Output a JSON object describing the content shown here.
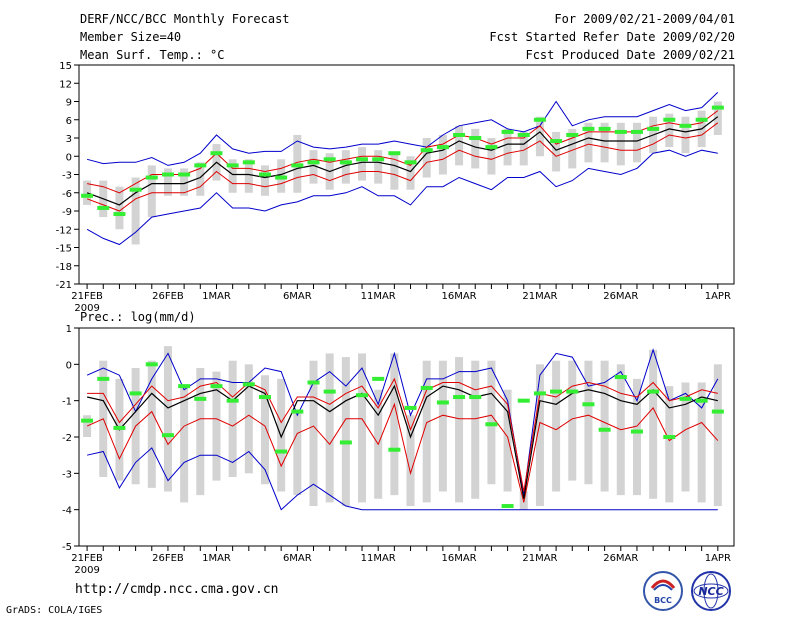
{
  "header": {
    "title": "DERF/NCC/BCC Monthly Forecast",
    "member_size": "Member Size=40",
    "variable": "Mean Surf. Temp.: °C",
    "period": "For 2009/02/21-2009/04/01",
    "fcst_started": "Fcst Started Refer Date 2009/02/20",
    "fcst_produced": "Fcst Produced Date 2009/02/21"
  },
  "footer": {
    "url": "http://cmdp.ncc.cma.gov.cn",
    "grads": "GrADS: COLA/IGES",
    "logo_bcc": "BCC",
    "logo_ncc": "NCC"
  },
  "colors": {
    "box": "#d3d3d3",
    "median": "#000000",
    "quartile": "#e00000",
    "extreme": "#0000cc",
    "obs": "#33ee33"
  },
  "chart_data": [
    {
      "type": "line",
      "title": "Mean Surf. Temp.: °C",
      "ylim": [
        -21,
        15
      ],
      "yticks": [
        15,
        12,
        9,
        6,
        3,
        0,
        -3,
        -6,
        -9,
        -12,
        -15,
        -18,
        -21
      ],
      "xlabels": [
        "21FEB",
        "26FEB",
        "1MAR",
        "6MAR",
        "11MAR",
        "16MAR",
        "21MAR",
        "26MAR",
        "1APR"
      ],
      "xlabel_days": [
        1,
        6,
        9,
        14,
        19,
        24,
        29,
        34,
        40
      ],
      "year_label": "2009",
      "days": 40,
      "series": [
        {
          "name": "max",
          "values": [
            -0.5,
            -1.2,
            -1.0,
            -1.0,
            -0.2,
            -1.5,
            -1.0,
            0.5,
            3.5,
            1.2,
            0.5,
            0.8,
            0.8,
            2.5,
            1.5,
            1.2,
            1.5,
            2.0,
            2.0,
            2.5,
            2.0,
            1.5,
            3.5,
            5.0,
            5.5,
            6.0,
            4.5,
            4.0,
            5.0,
            9.0,
            5.0,
            6.0,
            6.5,
            6.5,
            6.5,
            7.5,
            8.5,
            7.5,
            8.0,
            10.5
          ]
        },
        {
          "name": "q3",
          "values": [
            -4.5,
            -5.0,
            -6.0,
            -4.5,
            -3.0,
            -3.0,
            -3.0,
            -2.0,
            0.5,
            -2.0,
            -2.0,
            -2.5,
            -2.0,
            -1.0,
            -0.5,
            -1.0,
            -0.5,
            0.0,
            0.0,
            -0.5,
            -1.5,
            1.5,
            2.0,
            3.5,
            3.0,
            2.0,
            3.0,
            3.0,
            5.0,
            2.0,
            3.0,
            4.0,
            4.0,
            4.0,
            4.0,
            5.0,
            5.5,
            5.0,
            5.5,
            7.5
          ]
        },
        {
          "name": "median",
          "values": [
            -6.0,
            -7.0,
            -8.0,
            -6.0,
            -4.5,
            -4.5,
            -4.5,
            -3.5,
            -1.0,
            -3.0,
            -3.0,
            -3.5,
            -3.0,
            -2.0,
            -1.5,
            -2.5,
            -1.5,
            -1.0,
            -1.0,
            -1.5,
            -2.5,
            0.5,
            1.0,
            2.5,
            1.5,
            1.0,
            2.0,
            2.0,
            4.0,
            1.0,
            2.0,
            3.0,
            2.5,
            2.5,
            2.5,
            3.5,
            4.5,
            4.0,
            4.5,
            6.5
          ]
        },
        {
          "name": "q1",
          "values": [
            -7.0,
            -8.0,
            -9.0,
            -7.0,
            -6.0,
            -6.0,
            -6.0,
            -5.0,
            -2.5,
            -4.5,
            -4.5,
            -5.0,
            -4.5,
            -3.5,
            -3.0,
            -4.0,
            -3.0,
            -2.5,
            -2.5,
            -3.0,
            -4.0,
            -1.0,
            -0.5,
            1.0,
            0.0,
            -0.5,
            0.5,
            1.0,
            2.5,
            0.0,
            1.0,
            2.0,
            1.5,
            1.0,
            1.0,
            2.0,
            3.5,
            3.0,
            3.5,
            5.5
          ]
        },
        {
          "name": "min",
          "values": [
            -12.0,
            -13.5,
            -14.5,
            -12.5,
            -10.0,
            -9.5,
            -9.0,
            -8.5,
            -6.0,
            -8.5,
            -8.5,
            -9.0,
            -8.0,
            -7.5,
            -6.5,
            -6.5,
            -6.0,
            -5.0,
            -6.5,
            -6.5,
            -8.0,
            -5.0,
            -5.0,
            -3.5,
            -4.5,
            -5.5,
            -3.5,
            -3.5,
            -2.5,
            -5.0,
            -4.0,
            -2.0,
            -2.5,
            -3.0,
            -2.0,
            0.5,
            1.0,
            0.0,
            1.0,
            0.5
          ]
        },
        {
          "name": "box_low",
          "values": [
            -8.0,
            -10.0,
            -12.0,
            -14.5,
            -10.0,
            -6.5,
            -6.5,
            -6.5,
            -4.0,
            -6.0,
            -6.0,
            -6.5,
            -6.0,
            -6.0,
            -4.5,
            -5.5,
            -4.5,
            -4.0,
            -4.5,
            -5.5,
            -5.5,
            -3.5,
            -3.0,
            -1.5,
            -2.0,
            -3.0,
            -1.5,
            -1.5,
            0.0,
            -2.5,
            -2.0,
            -1.0,
            -1.0,
            -1.5,
            -1.0,
            0.5,
            1.5,
            0.5,
            1.5,
            3.5
          ]
        },
        {
          "name": "box_high",
          "values": [
            -4.0,
            -4.0,
            -5.0,
            -3.5,
            -1.5,
            -2.0,
            -2.0,
            -1.0,
            2.0,
            -0.5,
            -0.5,
            -1.5,
            -0.5,
            3.5,
            1.0,
            0.5,
            1.0,
            1.5,
            1.0,
            0.5,
            0.0,
            3.0,
            3.5,
            5.0,
            4.5,
            3.0,
            4.5,
            4.0,
            6.5,
            4.0,
            4.5,
            5.5,
            5.5,
            5.5,
            5.5,
            6.5,
            7.0,
            6.5,
            7.5,
            9.0
          ]
        },
        {
          "name": "observed",
          "values": [
            -6.5,
            -8.5,
            -9.5,
            -5.5,
            -3.5,
            -3.0,
            -3.0,
            -1.5,
            0.5,
            -1.5,
            -1.0,
            -3.0,
            -3.5,
            -1.5,
            -1.0,
            -0.5,
            -1.0,
            -0.5,
            -0.5,
            0.5,
            -1.0,
            1.0,
            1.5,
            3.5,
            3.0,
            1.5,
            4.0,
            3.5,
            6.0,
            2.5,
            3.5,
            4.5,
            4.5,
            4.0,
            4.0,
            4.5,
            6.0,
            5.0,
            6.0,
            8.0
          ]
        }
      ]
    },
    {
      "type": "line",
      "title": "Prec.: log(mm/d)",
      "ylim": [
        -5,
        1
      ],
      "yticks": [
        1,
        0,
        -1,
        -2,
        -3,
        -4,
        -5
      ],
      "xlabels": [
        "21FEB",
        "26FEB",
        "1MAR",
        "6MAR",
        "11MAR",
        "16MAR",
        "21MAR",
        "26MAR",
        "1APR"
      ],
      "xlabel_days": [
        1,
        6,
        9,
        14,
        19,
        24,
        29,
        34,
        40
      ],
      "year_label": "2009",
      "days": 40,
      "series": [
        {
          "name": "max",
          "values": [
            -0.3,
            -0.1,
            -0.3,
            -1.3,
            -0.4,
            0.3,
            -0.7,
            -0.4,
            -0.4,
            -0.5,
            -0.5,
            -0.1,
            -0.2,
            -1.4,
            -0.5,
            -0.2,
            -0.6,
            -0.1,
            -1.1,
            0.3,
            -1.4,
            -0.4,
            -0.4,
            -0.2,
            -0.2,
            -0.1,
            -1.0,
            -3.6,
            -0.3,
            0.3,
            0.2,
            -0.6,
            -0.5,
            -0.2,
            -1.0,
            0.4,
            -1.0,
            -0.8,
            -1.2,
            -0.4
          ]
        },
        {
          "name": "q3",
          "values": [
            -0.8,
            -0.8,
            -1.6,
            -1.1,
            -0.6,
            -1.0,
            -0.9,
            -0.6,
            -0.5,
            -0.9,
            -0.5,
            -0.7,
            -1.6,
            -0.9,
            -0.9,
            -1.1,
            -0.8,
            -0.6,
            -1.2,
            -0.4,
            -1.8,
            -0.7,
            -0.5,
            -0.5,
            -0.7,
            -0.6,
            -1.1,
            -3.5,
            -0.8,
            -0.9,
            -0.6,
            -0.5,
            -0.6,
            -0.8,
            -0.9,
            -0.5,
            -1.0,
            -0.9,
            -0.7,
            -0.8
          ]
        },
        {
          "name": "median",
          "values": [
            -0.9,
            -1.0,
            -1.8,
            -1.3,
            -0.8,
            -1.2,
            -1.0,
            -0.8,
            -0.7,
            -1.0,
            -0.6,
            -0.8,
            -2.0,
            -1.0,
            -1.0,
            -1.3,
            -1.0,
            -0.8,
            -1.4,
            -0.6,
            -2.0,
            -0.9,
            -0.6,
            -0.7,
            -0.9,
            -0.8,
            -1.3,
            -3.7,
            -1.0,
            -1.1,
            -0.8,
            -0.7,
            -0.8,
            -1.0,
            -1.1,
            -0.7,
            -1.2,
            -1.1,
            -0.9,
            -1.0
          ]
        },
        {
          "name": "q1",
          "values": [
            -1.7,
            -1.5,
            -2.6,
            -1.7,
            -1.3,
            -2.2,
            -1.7,
            -1.5,
            -1.5,
            -1.7,
            -1.4,
            -1.7,
            -2.8,
            -1.9,
            -1.7,
            -2.2,
            -1.5,
            -1.5,
            -2.2,
            -1.1,
            -3.0,
            -1.6,
            -1.4,
            -1.5,
            -1.5,
            -1.4,
            -2.0,
            -3.8,
            -1.6,
            -1.8,
            -1.5,
            -1.4,
            -1.6,
            -1.8,
            -1.7,
            -1.2,
            -2.1,
            -1.8,
            -1.6,
            -2.1
          ]
        },
        {
          "name": "min",
          "values": [
            -2.5,
            -2.4,
            -3.4,
            -2.7,
            -2.3,
            -3.2,
            -2.7,
            -2.5,
            -2.5,
            -2.7,
            -2.4,
            -2.9,
            -4.0,
            -3.6,
            -3.3,
            -3.6,
            -3.9,
            -4.0,
            -4.0,
            -4.0,
            -4.0,
            -4.0,
            -4.0,
            -4.0,
            -4.0,
            -4.0,
            -4.0,
            -4.0,
            -4.0,
            -4.0,
            -4.0,
            -4.0,
            -4.0,
            -4.0,
            -4.0,
            -4.0,
            -4.0,
            -4.0,
            -4.0,
            -4.0
          ]
        },
        {
          "name": "box_low",
          "values": [
            -2.0,
            -3.1,
            -3.2,
            -3.3,
            -3.4,
            -3.5,
            -3.8,
            -3.6,
            -3.2,
            -3.1,
            -3.0,
            -3.3,
            -3.5,
            -3.6,
            -3.9,
            -3.8,
            -3.9,
            -3.8,
            -3.7,
            -3.6,
            -3.9,
            -3.8,
            -3.5,
            -3.8,
            -3.7,
            -3.3,
            -3.5,
            -4.0,
            -3.9,
            -3.5,
            -3.2,
            -3.3,
            -3.5,
            -3.6,
            -3.6,
            -3.7,
            -3.8,
            -3.5,
            -3.8,
            -3.9
          ]
        },
        {
          "name": "box_high",
          "values": [
            -1.4,
            0.1,
            -0.4,
            -0.1,
            0.1,
            0.5,
            -0.6,
            -0.1,
            -0.2,
            0.1,
            0.0,
            -0.3,
            -0.4,
            -1.3,
            0.1,
            0.3,
            0.2,
            0.3,
            -0.7,
            0.3,
            -1.4,
            0.1,
            0.1,
            0.2,
            0.1,
            0.1,
            -0.7,
            -3.5,
            0.0,
            0.1,
            0.1,
            0.1,
            0.1,
            0.0,
            -0.4,
            0.4,
            -0.6,
            -0.5,
            -0.5,
            0.0
          ]
        },
        {
          "name": "observed",
          "values": [
            -1.55,
            -0.4,
            -1.75,
            -0.8,
            0.0,
            -1.95,
            -0.6,
            -0.95,
            -0.6,
            -1.0,
            -0.55,
            -0.9,
            -2.4,
            -1.3,
            -0.5,
            -0.75,
            -2.15,
            -0.85,
            -0.4,
            -2.35,
            -1.2,
            -0.65,
            -1.05,
            -0.9,
            -0.9,
            -1.65,
            -3.9,
            -1.0,
            -0.8,
            -0.75,
            -0.75,
            -1.1,
            -1.8,
            -0.35,
            -1.85,
            -0.75,
            -2.0,
            -0.95,
            -1.0,
            -1.3
          ]
        }
      ]
    }
  ]
}
